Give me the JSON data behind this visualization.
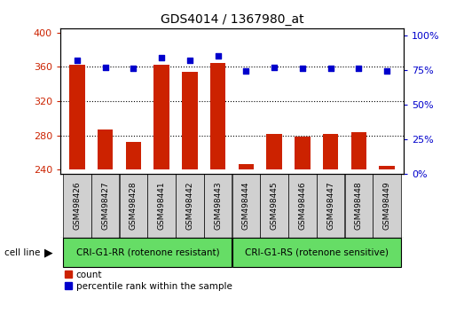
{
  "title": "GDS4014 / 1367980_at",
  "samples": [
    "GSM498426",
    "GSM498427",
    "GSM498428",
    "GSM498441",
    "GSM498442",
    "GSM498443",
    "GSM498444",
    "GSM498445",
    "GSM498446",
    "GSM498447",
    "GSM498448",
    "GSM498449"
  ],
  "counts": [
    362,
    287,
    272,
    362,
    354,
    365,
    246,
    282,
    279,
    282,
    284,
    244
  ],
  "percentiles": [
    82,
    77,
    76,
    84,
    82,
    85,
    74,
    77,
    76,
    76,
    76,
    74
  ],
  "group1_label": "CRI-G1-RR (rotenone resistant)",
  "group2_label": "CRI-G1-RS (rotenone sensitive)",
  "group1_count": 6,
  "group2_count": 6,
  "bar_color": "#cc2200",
  "dot_color": "#0000cc",
  "ylim_left": [
    235,
    405
  ],
  "yticks_left": [
    240,
    280,
    320,
    360,
    400
  ],
  "ylim_right": [
    0,
    105
  ],
  "yticks_right": [
    0,
    25,
    50,
    75,
    100
  ],
  "cell_line_label": "cell line",
  "legend_count": "count",
  "legend_pct": "percentile rank within the sample",
  "bar_width": 0.55,
  "group_bg": "#66dd66",
  "tick_bg": "#d0d0d0",
  "grid_lines": [
    280,
    320,
    360
  ],
  "fig_width": 5.23,
  "fig_height": 3.54,
  "fig_dpi": 100
}
